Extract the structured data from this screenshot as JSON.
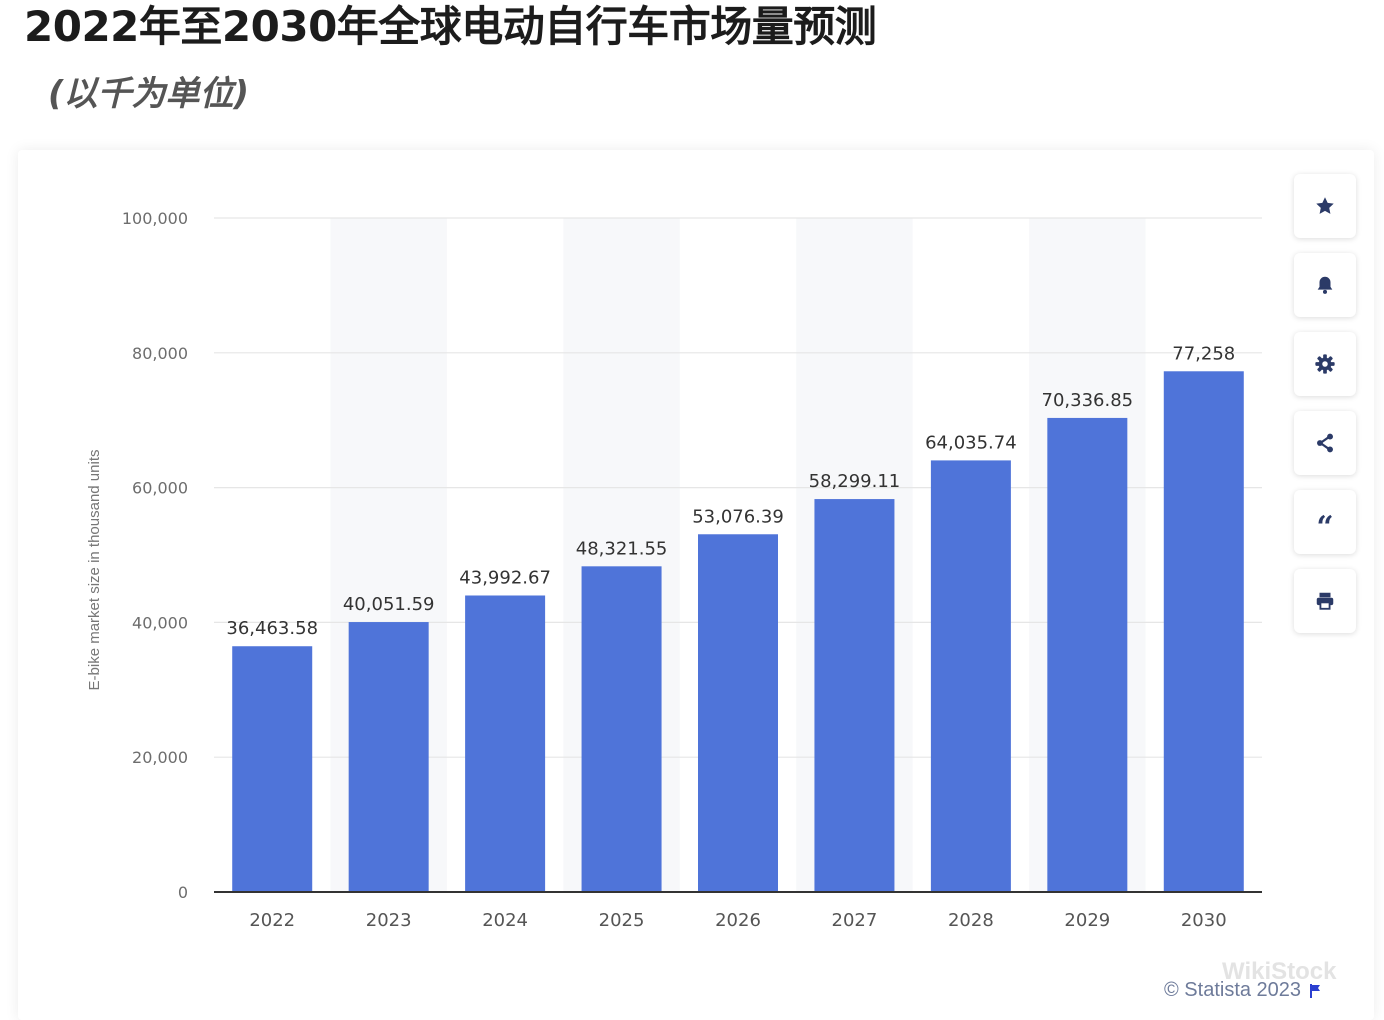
{
  "header": {
    "title": "2022年至2030年全球电动自行车市场量预测",
    "subtitle": "(以千为单位)"
  },
  "toolbar": {
    "items": [
      {
        "name": "favorite",
        "icon": "star-icon"
      },
      {
        "name": "notify",
        "icon": "bell-icon"
      },
      {
        "name": "settings",
        "icon": "gear-icon"
      },
      {
        "name": "share",
        "icon": "share-icon"
      },
      {
        "name": "cite",
        "icon": "quote-icon",
        "glyph": "“"
      },
      {
        "name": "print",
        "icon": "printer-icon"
      }
    ]
  },
  "footer": {
    "credit": "© Statista 2023",
    "watermark": "WikiStock"
  },
  "colors": {
    "bar": "#4f74d9",
    "grid": "#e6e6e6",
    "axis": "#333333",
    "tick_text": "#6d6d6d",
    "label_text": "#333333",
    "band": "#f7f8fa"
  },
  "chart_data": {
    "type": "bar",
    "title": "2022年至2030年全球电动自行车市场量预测",
    "subtitle": "(以千为单位)",
    "xlabel": "",
    "ylabel": "E-bike market size in thousand units",
    "ylim": [
      0,
      100000
    ],
    "yticks": [
      0,
      20000,
      40000,
      60000,
      80000,
      100000
    ],
    "ytick_labels": [
      "0",
      "20,000",
      "40,000",
      "60,000",
      "80,000",
      "100,000"
    ],
    "grid": true,
    "categories": [
      "2022",
      "2023",
      "2024",
      "2025",
      "2026",
      "2027",
      "2028",
      "2029",
      "2030"
    ],
    "values": [
      36463.58,
      40051.59,
      43992.67,
      48321.55,
      53076.39,
      58299.11,
      64035.74,
      70336.85,
      77258
    ],
    "value_labels": [
      "36,463.58",
      "40,051.59",
      "43,992.67",
      "48,321.55",
      "53,076.39",
      "58,299.11",
      "64,035.74",
      "70,336.85",
      "77,258"
    ]
  }
}
